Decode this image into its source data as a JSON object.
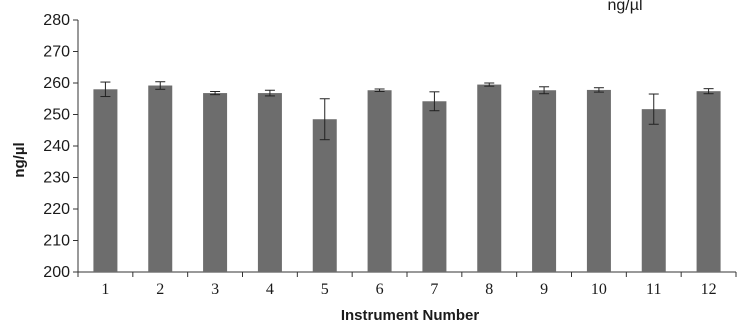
{
  "chart_data": {
    "type": "bar",
    "title": "",
    "corner_label": "ng/µl",
    "xlabel": "Instrument Number",
    "ylabel": "ng/µl",
    "ylim": [
      200,
      280
    ],
    "yticks": [
      200,
      210,
      220,
      230,
      240,
      250,
      260,
      270,
      280
    ],
    "categories": [
      "1",
      "2",
      "3",
      "4",
      "5",
      "6",
      "7",
      "8",
      "9",
      "10",
      "11",
      "12"
    ],
    "values": [
      258,
      259.2,
      256.8,
      256.8,
      248.5,
      257.7,
      254.2,
      259.5,
      257.7,
      257.8,
      251.7,
      257.4
    ],
    "error": [
      2.3,
      1.2,
      0.5,
      0.9,
      6.5,
      0.4,
      3.0,
      0.5,
      1.1,
      0.7,
      4.8,
      0.8
    ],
    "grid": false,
    "legend": "none",
    "colors": {
      "bar": "#6d6d6d",
      "axis": "#333333",
      "errorbar": "#222222"
    }
  }
}
